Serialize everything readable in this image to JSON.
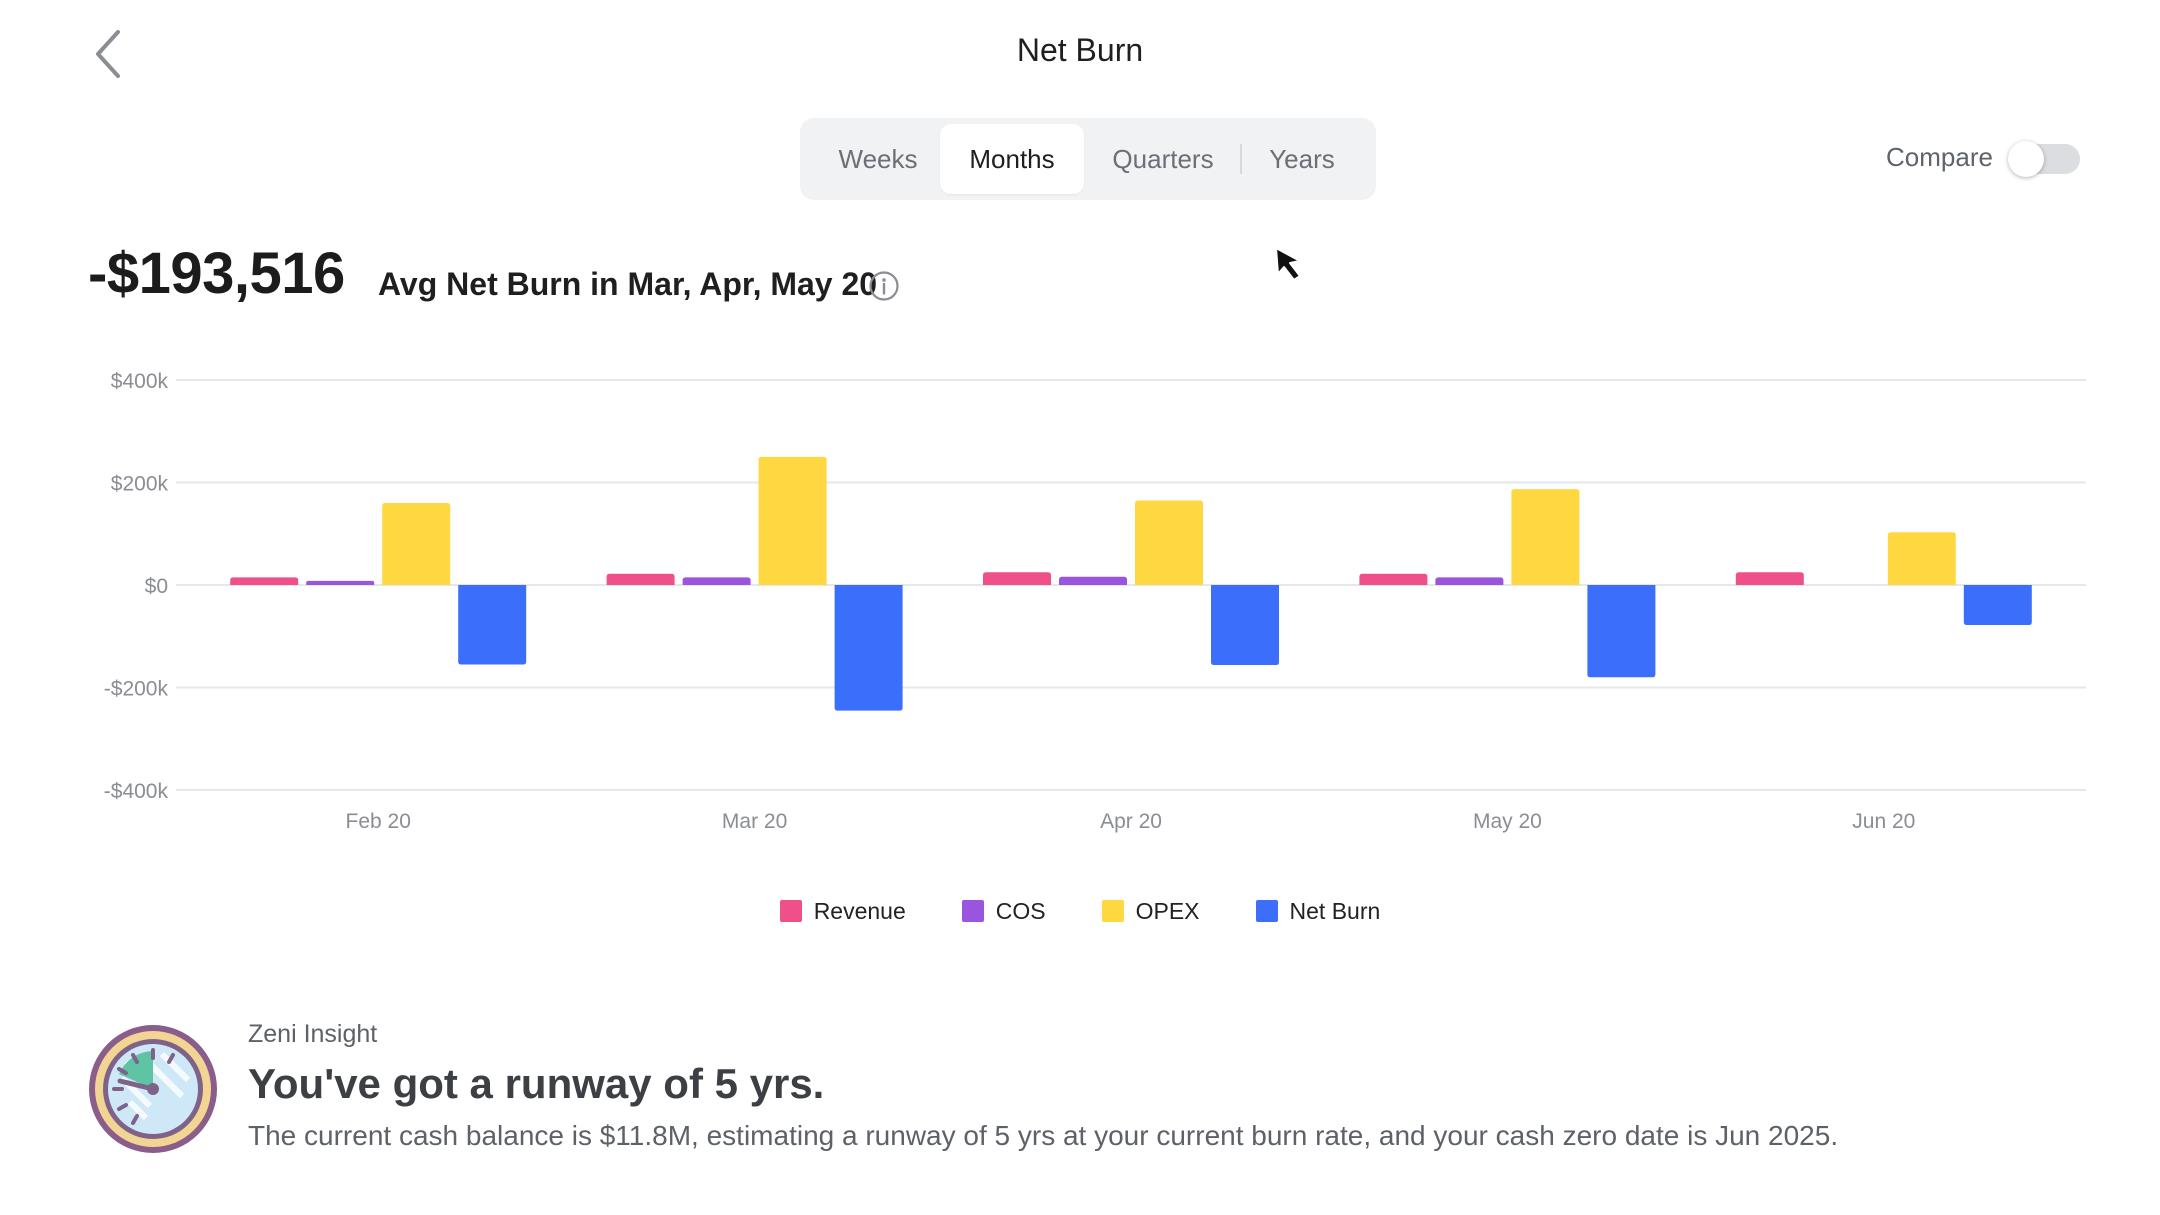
{
  "header": {
    "title": "Net Burn"
  },
  "period_tabs": [
    {
      "label": "Weeks",
      "active": false
    },
    {
      "label": "Months",
      "active": true
    },
    {
      "label": "Quarters",
      "active": false
    },
    {
      "label": "Years",
      "active": false
    }
  ],
  "compare": {
    "label": "Compare",
    "enabled": false
  },
  "summary": {
    "value": "-$193,516",
    "description": "Avg Net Burn in Mar, Apr, May 20"
  },
  "chart_data": {
    "type": "bar",
    "categories": [
      "Feb 20",
      "Mar 20",
      "Apr 20",
      "May 20",
      "Jun 20"
    ],
    "y_ticks": [
      "$400k",
      "$200k",
      "$0",
      "-$200k",
      "-$400k"
    ],
    "ylim": [
      -400000,
      400000
    ],
    "grid": true,
    "legend_position": "bottom",
    "series": [
      {
        "name": "Revenue",
        "color": "#f0508a",
        "values": [
          15000,
          22000,
          25000,
          22000,
          25000
        ]
      },
      {
        "name": "COS",
        "color": "#9a55de",
        "values": [
          8000,
          15000,
          16000,
          15000,
          0
        ]
      },
      {
        "name": "OPEX",
        "color": "#ffd740",
        "values": [
          160000,
          250000,
          165000,
          187000,
          103000
        ]
      },
      {
        "name": "Net Burn",
        "color": "#3b6efb",
        "values": [
          -155000,
          -245000,
          -156000,
          -180000,
          -78000
        ]
      }
    ]
  },
  "insight": {
    "label": "Zeni Insight",
    "headline": "You've got a runway of 5 yrs.",
    "body": "The current cash balance is $11.8M, estimating a runway of 5 yrs at your current burn rate, and your cash zero date is Jun 2025."
  }
}
